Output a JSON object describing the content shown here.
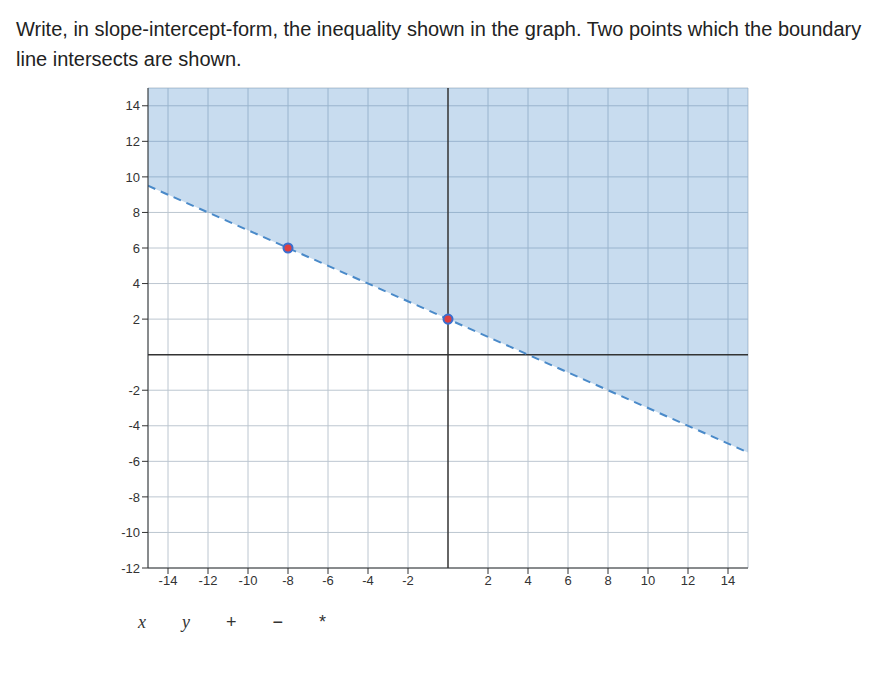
{
  "chart_data": {
    "type": "area",
    "title": "Write, in slope-intercept-form, the inequality shown in the graph. Two points which the boundary line intersects are shown.",
    "x": [
      -15,
      -8,
      0,
      15
    ],
    "values": [
      9.5,
      6,
      2,
      -5.5
    ],
    "color": "#4a8ac9",
    "line_style": "dashed",
    "points": {
      "x": [
        -8,
        0
      ],
      "y": [
        6,
        2
      ],
      "color": "#e04040"
    },
    "xlim": [
      -15,
      15
    ],
    "ylim": [
      -12,
      15
    ],
    "xticks": [
      -14,
      -12,
      -10,
      -8,
      -6,
      -4,
      -2,
      2,
      4,
      6,
      8,
      10,
      12,
      14
    ],
    "yticks": [
      -12,
      -10,
      -8,
      -6,
      -4,
      -2,
      2,
      4,
      6,
      8,
      10,
      12,
      14
    ],
    "grid": true
  },
  "toolbar": [
    "x",
    "y",
    "+",
    "−",
    "*"
  ]
}
